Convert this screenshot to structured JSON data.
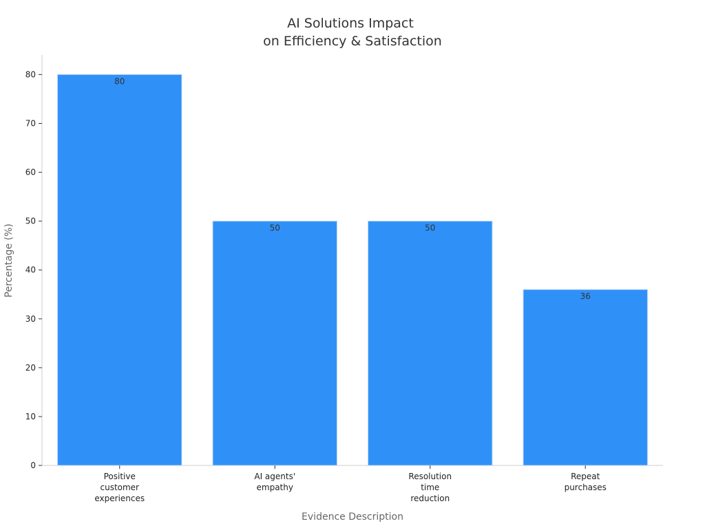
{
  "chart_data": {
    "type": "bar",
    "title": [
      "AI Solutions Impact",
      "on Efficiency & Satisfaction"
    ],
    "xlabel": "Evidence Description",
    "ylabel": "Percentage (%)",
    "categories": [
      [
        "Positive",
        "customer",
        "experiences"
      ],
      [
        "AI agents'",
        "empathy"
      ],
      [
        "Resolution",
        "time",
        "reduction"
      ],
      [
        "Repeat",
        "purchases"
      ]
    ],
    "values": [
      80,
      50,
      50,
      36
    ],
    "ylim": [
      0,
      84
    ],
    "yticks": [
      0,
      10,
      20,
      30,
      40,
      50,
      60,
      70,
      80
    ],
    "bar_color": "#2f91f8",
    "grid": false,
    "legend": "none"
  }
}
